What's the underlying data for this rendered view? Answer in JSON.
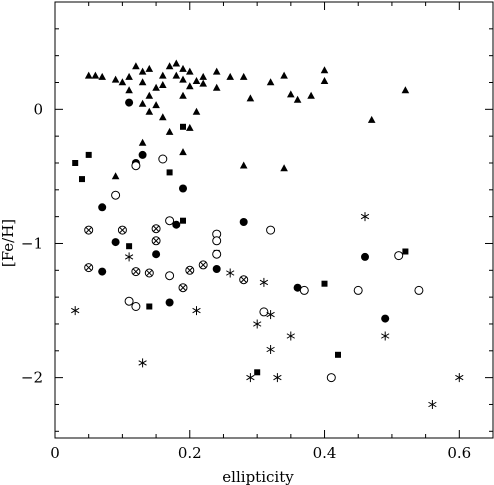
{
  "chart_data": {
    "type": "scatter",
    "xlabel": "ellipticity",
    "ylabel": "[Fe/H]",
    "xlim": [
      0,
      0.65
    ],
    "ylim": [
      -2.45,
      0.8
    ],
    "xticks": [
      0,
      0.2,
      0.4,
      0.6
    ],
    "xtick_labels": [
      "0",
      "0.2",
      "0.4",
      "0.6"
    ],
    "yticks": [
      0,
      -1,
      -2
    ],
    "ytick_labels": [
      "0",
      "−1",
      "−2"
    ],
    "grid": false,
    "legend": "none",
    "series": [
      {
        "marker": "filled-triangle",
        "points": [
          [
            0.05,
            0.25
          ],
          [
            0.06,
            0.25
          ],
          [
            0.07,
            0.24
          ],
          [
            0.09,
            0.22
          ],
          [
            0.1,
            0.2
          ],
          [
            0.11,
            0.24
          ],
          [
            0.11,
            0.14
          ],
          [
            0.12,
            0.32
          ],
          [
            0.13,
            0.28
          ],
          [
            0.13,
            0.2
          ],
          [
            0.14,
            0.1
          ],
          [
            0.14,
            0.3
          ],
          [
            0.15,
            0.16
          ],
          [
            0.15,
            0.03
          ],
          [
            0.16,
            0.25
          ],
          [
            0.16,
            0.18
          ],
          [
            0.17,
            0.32
          ],
          [
            0.18,
            0.34
          ],
          [
            0.18,
            0.25
          ],
          [
            0.19,
            0.3
          ],
          [
            0.19,
            0.22
          ],
          [
            0.19,
            0.1
          ],
          [
            0.2,
            0.28
          ],
          [
            0.2,
            0.17
          ],
          [
            0.21,
            0.21
          ],
          [
            0.22,
            0.19
          ],
          [
            0.22,
            0.24
          ],
          [
            0.24,
            0.16
          ],
          [
            0.24,
            0.28
          ],
          [
            0.26,
            0.24
          ],
          [
            0.28,
            0.24
          ],
          [
            0.29,
            0.08
          ],
          [
            0.32,
            0.2
          ],
          [
            0.34,
            0.25
          ],
          [
            0.35,
            0.11
          ],
          [
            0.36,
            0.07
          ],
          [
            0.38,
            0.1
          ],
          [
            0.4,
            0.29
          ],
          [
            0.4,
            0.21
          ],
          [
            0.52,
            0.14
          ],
          [
            0.13,
            0.04
          ],
          [
            0.14,
            -0.02
          ],
          [
            0.16,
            -0.06
          ],
          [
            0.2,
            -0.14
          ],
          [
            0.21,
            -0.02
          ],
          [
            0.47,
            -0.08
          ],
          [
            0.13,
            -0.25
          ],
          [
            0.17,
            -0.17
          ],
          [
            0.19,
            -0.32
          ],
          [
            0.09,
            -0.5
          ],
          [
            0.28,
            -0.42
          ],
          [
            0.34,
            -0.44
          ]
        ]
      },
      {
        "marker": "filled-circle",
        "points": [
          [
            0.11,
            0.05
          ],
          [
            0.12,
            -0.4
          ],
          [
            0.13,
            -0.34
          ],
          [
            0.19,
            -0.59
          ],
          [
            0.07,
            -0.73
          ],
          [
            0.09,
            -0.99
          ],
          [
            0.07,
            -1.21
          ],
          [
            0.15,
            -1.08
          ],
          [
            0.18,
            -0.86
          ],
          [
            0.17,
            -1.44
          ],
          [
            0.24,
            -1.19
          ],
          [
            0.28,
            -0.84
          ],
          [
            0.36,
            -1.33
          ],
          [
            0.46,
            -1.1
          ],
          [
            0.49,
            -1.56
          ]
        ]
      },
      {
        "marker": "filled-square",
        "points": [
          [
            0.03,
            -0.4
          ],
          [
            0.04,
            -0.52
          ],
          [
            0.05,
            -0.34
          ],
          [
            0.17,
            -0.47
          ],
          [
            0.19,
            -0.13
          ],
          [
            0.19,
            -0.83
          ],
          [
            0.11,
            -1.02
          ],
          [
            0.14,
            -1.47
          ],
          [
            0.24,
            -1.07
          ],
          [
            0.4,
            -1.3
          ],
          [
            0.42,
            -1.83
          ],
          [
            0.52,
            -1.06
          ],
          [
            0.3,
            -1.96
          ]
        ]
      },
      {
        "marker": "open-circle",
        "points": [
          [
            0.12,
            -0.42
          ],
          [
            0.16,
            -0.37
          ],
          [
            0.09,
            -0.64
          ],
          [
            0.17,
            -0.83
          ],
          [
            0.24,
            -0.93
          ],
          [
            0.24,
            -0.98
          ],
          [
            0.24,
            -1.08
          ],
          [
            0.32,
            -0.9
          ],
          [
            0.17,
            -1.24
          ],
          [
            0.11,
            -1.43
          ],
          [
            0.12,
            -1.47
          ],
          [
            0.31,
            -1.51
          ],
          [
            0.37,
            -1.35
          ],
          [
            0.45,
            -1.35
          ],
          [
            0.51,
            -1.09
          ],
          [
            0.54,
            -1.35
          ],
          [
            0.41,
            -2.0
          ]
        ]
      },
      {
        "marker": "circle-cross",
        "points": [
          [
            0.05,
            -0.9
          ],
          [
            0.1,
            -0.9
          ],
          [
            0.15,
            -0.89
          ],
          [
            0.15,
            -0.98
          ],
          [
            0.05,
            -1.18
          ],
          [
            0.12,
            -1.21
          ],
          [
            0.14,
            -1.22
          ],
          [
            0.2,
            -1.2
          ],
          [
            0.22,
            -1.16
          ],
          [
            0.19,
            -1.33
          ],
          [
            0.28,
            -1.27
          ]
        ]
      },
      {
        "marker": "asterisk",
        "points": [
          [
            0.03,
            -1.5
          ],
          [
            0.11,
            -1.1
          ],
          [
            0.21,
            -1.5
          ],
          [
            0.26,
            -1.22
          ],
          [
            0.31,
            -1.29
          ],
          [
            0.3,
            -1.6
          ],
          [
            0.32,
            -1.53
          ],
          [
            0.32,
            -1.79
          ],
          [
            0.35,
            -1.69
          ],
          [
            0.46,
            -0.8
          ],
          [
            0.49,
            -1.69
          ],
          [
            0.13,
            -1.89
          ],
          [
            0.29,
            -2.0
          ],
          [
            0.33,
            -2.0
          ],
          [
            0.56,
            -2.2
          ],
          [
            0.6,
            -2.0
          ]
        ]
      }
    ]
  }
}
